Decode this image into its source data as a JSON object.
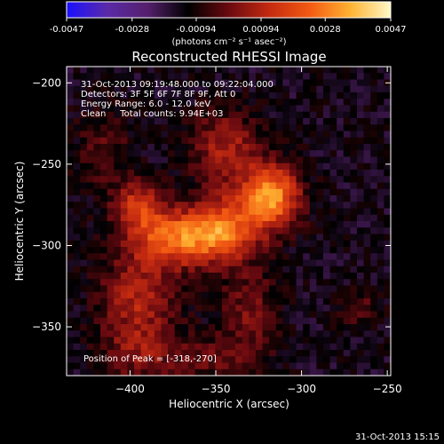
{
  "chart_data": {
    "type": "heatmap",
    "title": "Reconstructed RHESSI Image",
    "xlabel": "Heliocentric X (arcsec)",
    "ylabel": "Heliocentric Y (arcsec)",
    "xlim": [
      -437,
      -248
    ],
    "ylim": [
      -380,
      -190
    ],
    "xticks": [
      -400,
      -350,
      -300,
      -250
    ],
    "yticks": [
      -200,
      -250,
      -300,
      -350
    ],
    "colorbar": {
      "range": [
        -0.0047,
        0.0047
      ],
      "ticks": [
        -0.0047,
        -0.0028,
        -0.00094,
        0.00094,
        0.0028,
        0.0047
      ],
      "tick_labels": [
        "-0.0047",
        "-0.0028",
        "-0.00094",
        "0.00094",
        "0.0028",
        "0.0047"
      ],
      "unit_label": "(photons cm⁻² s⁻¹ asec⁻²)",
      "colors": [
        "#1a10ff",
        "#5a2aa8",
        "#55206c",
        "#000000",
        "#6a0a10",
        "#c42a10",
        "#f25a12",
        "#ffb232",
        "#fff9c8"
      ]
    },
    "annotations": [
      "31-Oct-2013 09:19:48.000 to 09:22:04.000",
      "Detectors: 3F 5F 6F 7F 8F 9F, Att 0",
      "Energy Range: 6.0 - 12.0 keV",
      "Clean     Total counts: 9.94E+03"
    ],
    "peak_label": "Position of Peak = [-318,-270]",
    "peak": [
      -318,
      -270
    ],
    "sources": [
      {
        "x": -318,
        "y": -270,
        "amp": 0.0045,
        "sx": 12,
        "sy": 14
      },
      {
        "x": -373,
        "y": -295,
        "amp": 0.0038,
        "sx": 20,
        "sy": 12
      },
      {
        "x": -345,
        "y": -290,
        "amp": 0.003,
        "sx": 14,
        "sy": 14
      },
      {
        "x": -395,
        "y": -275,
        "amp": 0.0026,
        "sx": 10,
        "sy": 10
      },
      {
        "x": -345,
        "y": -240,
        "amp": 0.0022,
        "sx": 14,
        "sy": 16
      },
      {
        "x": -395,
        "y": -330,
        "amp": 0.0022,
        "sx": 16,
        "sy": 16
      },
      {
        "x": -395,
        "y": -365,
        "amp": 0.0017,
        "sx": 16,
        "sy": 14
      },
      {
        "x": -330,
        "y": -340,
        "amp": 0.0015,
        "sx": 12,
        "sy": 18
      },
      {
        "x": -415,
        "y": -240,
        "amp": 0.001,
        "sx": 12,
        "sy": 20
      },
      {
        "x": -350,
        "y": -370,
        "amp": 0.0012,
        "sx": 18,
        "sy": 10
      },
      {
        "x": -265,
        "y": -340,
        "amp": 0.0012,
        "sx": 8,
        "sy": 8
      }
    ],
    "background": -0.0014,
    "grid": false
  },
  "footer": {
    "timestamp": "31-Oct-2013 15:15"
  }
}
